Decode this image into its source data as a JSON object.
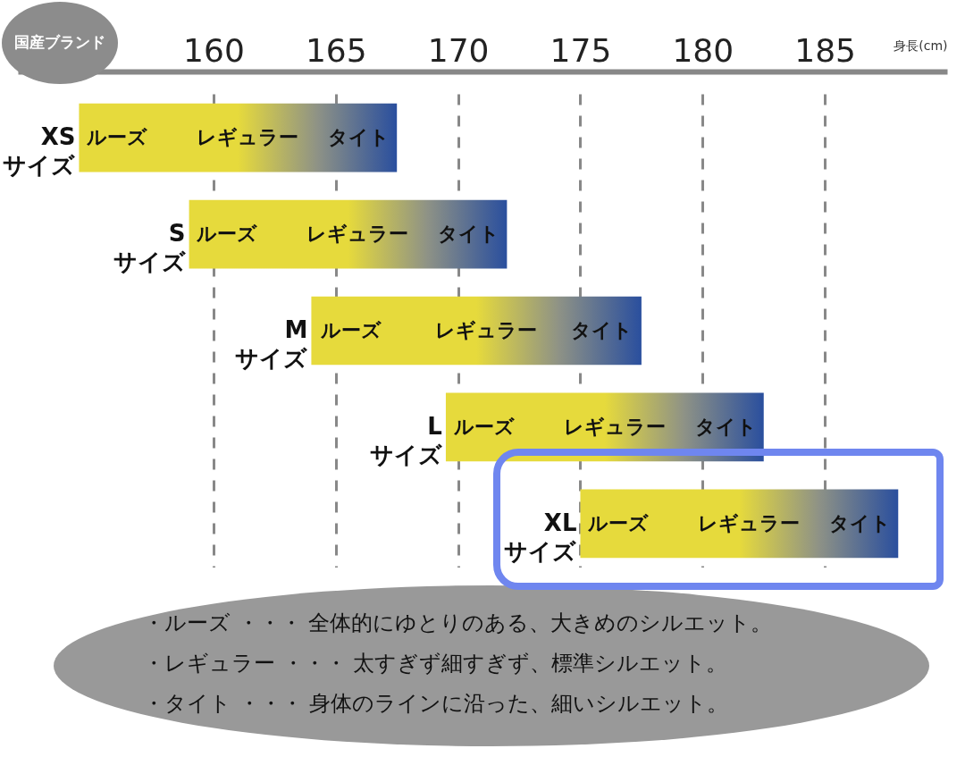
{
  "chart_data": {
    "type": "bar",
    "orientation": "horizontal",
    "title": "国産ブランド",
    "xlabel": "身長(cm)",
    "categories": [
      "XS\nサイズ",
      "S\nサイズ",
      "M\nサイズ",
      "L\nサイズ",
      "XL\nサイズ"
    ],
    "series": [
      {
        "color": "#e6da3c",
        "values": [
          13,
          13,
          13.5,
          13,
          13
        ],
        "base": [
          154.5,
          159,
          164,
          169.5,
          175
        ]
      }
    ],
    "xlim": [
      152,
      190
    ],
    "xticks": [
      160,
      165,
      170,
      175,
      180,
      185
    ],
    "grid": "x",
    "line_style": "dashed",
    "annotations": [
      "ルーズ",
      "レギュラー",
      "タイト",
      "ルーズ",
      "レギュラー",
      "タイト",
      "ルーズ",
      "レギュラー",
      "タイト",
      "ルーズ",
      "レギュラー",
      "タイト",
      "ルーズ",
      "レギュラー",
      "タイト",
      "・ルーズ ・・・ 全体的にゆとりのある、大きめのシルエット。",
      "・レギュラー ・・・ 太すぎず細すぎず、標準シルエット。",
      "・タイト ・・・ 身体のラインに沿った、細いシルエット。"
    ]
  }
}
